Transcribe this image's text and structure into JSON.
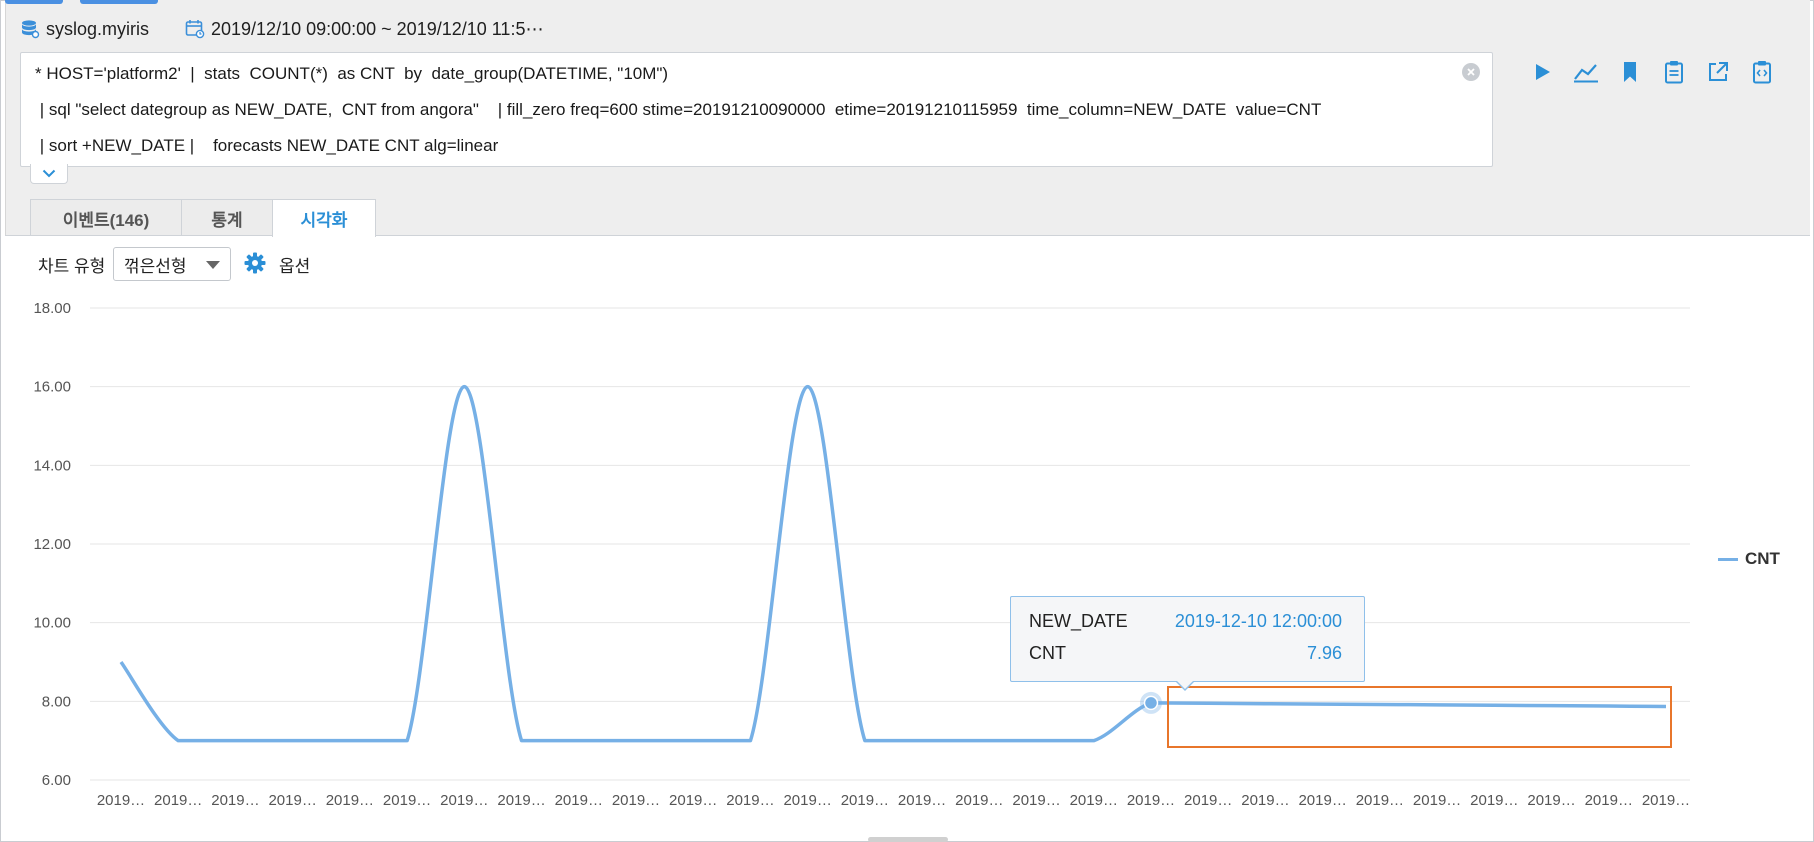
{
  "header": {
    "source": "syslog.myiris",
    "time_range": "2019/12/10 09:00:00 ~ 2019/12/10 11:5⋯"
  },
  "query": {
    "lines": [
      "* HOST='platform2'  |  stats  COUNT(*)  as CNT  by  date_group(DATETIME, \"10M\")",
      " | sql \"select dategroup as NEW_DATE,  CNT from angora\"    | fill_zero freq=600 stime=20191210090000  etime=20191210115959  time_column=NEW_DATE  value=CNT",
      " | sort +NEW_DATE |    forecasts NEW_DATE CNT alg=linear"
    ]
  },
  "toolbar": {
    "icons": [
      "play-icon",
      "line-chart-icon",
      "bookmark-icon",
      "clipboard-icon",
      "export-icon",
      "code-icon"
    ]
  },
  "tabs": [
    {
      "label": "이벤트(146)",
      "active": false
    },
    {
      "label": "통계",
      "active": false
    },
    {
      "label": "시각화",
      "active": true
    }
  ],
  "controls": {
    "chart_type_label": "차트 유형",
    "chart_type_value": "꺾은선형",
    "options_label": "옵션"
  },
  "tooltip": {
    "key1": "NEW_DATE",
    "val1": "2019-12-10 12:00:00",
    "key2": "CNT",
    "val2": "7.96"
  },
  "colors": {
    "accent": "#2b8fd6",
    "series": "#76b0e6",
    "highlight": "#e8762b"
  },
  "chart_data": {
    "type": "line",
    "ylim": [
      6,
      18
    ],
    "yticks": [
      "18.00",
      "16.00",
      "14.00",
      "12.00",
      "10.00",
      "8.00",
      "6.00"
    ],
    "x_tick_label": "2019…",
    "legend_position": "right",
    "grid": true,
    "series": [
      {
        "name": "CNT",
        "values": [
          9,
          7,
          7,
          7,
          7,
          7,
          16,
          7,
          7,
          7,
          7,
          7,
          16,
          7,
          7,
          7,
          7,
          7,
          7.96,
          7.95,
          7.94,
          7.93,
          7.92,
          7.91,
          7.9,
          7.89,
          7.88,
          7.87
        ]
      }
    ]
  }
}
